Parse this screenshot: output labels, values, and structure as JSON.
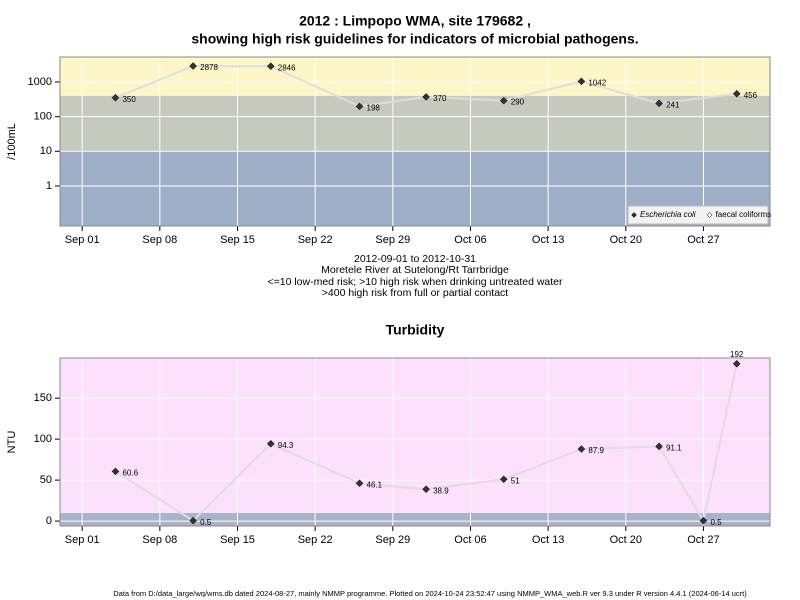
{
  "title_lines": [
    "2012 : Limpopo WMA, site 179682 ,",
    "showing high risk guidelines for indicators of microbial pathogens."
  ],
  "subtitle_lines": [
    "2012-09-01 to 2012-10-31",
    "Moretele River at Sutelong/Rt Tarrbridge",
    "<=10 low-med risk; >10 high risk when drinking untreated water",
    ">400 high risk from full or partial contact"
  ],
  "footer": "Data from D:/data_large/wq/wms.db dated 2024-08-27, mainly NMMP programme. Plotted on 2024-10-24 23:52:47 using NMMP_WMA_web.R ver 9.3 under R version 4.4.1 (2024-06-14 ucrt)",
  "chart_data": [
    {
      "type": "line",
      "y_label": "/100mL",
      "log_scale": true,
      "grid": true,
      "legend": "lower right",
      "xlim": [
        "Aug 30",
        "Nov 02"
      ],
      "xticks": [
        "Sep 01",
        "Sep 08",
        "Sep 15",
        "Sep 22",
        "Sep 29",
        "Oct 06",
        "Oct 13",
        "Oct 20",
        "Oct 27"
      ],
      "ylim": [
        0.07,
        5250
      ],
      "yticks": [
        1,
        10,
        100,
        1000
      ],
      "bands": [
        {
          "to": 10,
          "color": "#9fafc8"
        },
        {
          "from": 10,
          "to": 400,
          "color": "#c4cbbe"
        },
        {
          "from": 400,
          "color": "#fdf6c6"
        }
      ],
      "x": [
        "Sep 04",
        "Sep 11",
        "Sep 18",
        "Sep 26",
        "Oct 02",
        "Oct 09",
        "Oct 16",
        "Oct 23",
        "Oct 30"
      ],
      "series": [
        {
          "name": "Escherichia coli",
          "color": "#333333",
          "line_color": "#dddddd",
          "values": [
            350,
            2878,
            2846,
            198,
            370,
            290,
            1042,
            241,
            456
          ]
        },
        {
          "name": "faecal coliforms",
          "color": "#ffffff",
          "line_color": "#dddddd",
          "values": [
            null,
            null,
            null,
            null,
            null,
            null,
            null,
            null,
            null
          ]
        }
      ]
    },
    {
      "type": "line",
      "title": "Turbidity",
      "y_label": "NTU",
      "grid": true,
      "xlim": [
        "Aug 30",
        "Nov 02"
      ],
      "xticks": [
        "Sep 01",
        "Sep 08",
        "Sep 15",
        "Sep 22",
        "Sep 29",
        "Oct 06",
        "Oct 13",
        "Oct 20",
        "Oct 27"
      ],
      "ylim": [
        -6,
        199
      ],
      "yticks": [
        0,
        50,
        100,
        150
      ],
      "bands": [
        {
          "to": 10,
          "color": "#a8b4c8"
        },
        {
          "from": 10,
          "color": "#fde0fb"
        }
      ],
      "x": [
        "Sep 04",
        "Sep 11",
        "Sep 18",
        "Sep 26",
        "Oct 02",
        "Oct 09",
        "Oct 16",
        "Oct 23",
        "Oct 27",
        "Oct 30"
      ],
      "series": [
        {
          "color": "#333333",
          "line_color": "#dddddd",
          "values": [
            60.6,
            0.5,
            94.3,
            46.1,
            38.9,
            51,
            87.9,
            91.1,
            0.5,
            192
          ]
        }
      ]
    }
  ]
}
